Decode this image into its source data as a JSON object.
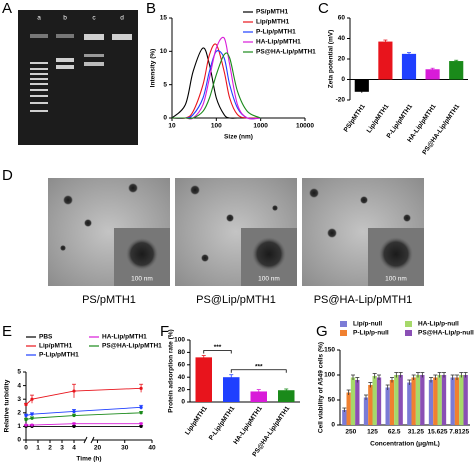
{
  "panels": [
    "A",
    "B",
    "C",
    "D",
    "E",
    "F",
    "G"
  ],
  "gel": {
    "lanes": [
      "a",
      "b",
      "c",
      "d"
    ]
  },
  "tem": {
    "captions": [
      "PS/pMTH1",
      "PS@Lip/pMTH1",
      "PS@HA-Lip/pMTH1"
    ],
    "scale_bar": "100 nm"
  },
  "chart_data": [
    {
      "type": "line",
      "xlabel": "Size (nm)",
      "ylabel": "Intensity (%)",
      "xscale": "log",
      "x": [
        10,
        20,
        30,
        50,
        70,
        100,
        150,
        200,
        300,
        500,
        1000
      ],
      "xlim": [
        10,
        10000
      ],
      "xticks": [
        10,
        100,
        1000,
        10000
      ],
      "ylim": [
        0,
        15
      ],
      "yticks": [
        0,
        5,
        10,
        15
      ],
      "legend": "upper right",
      "series": [
        {
          "name": "PS/pMTH1",
          "color": "#000000",
          "values": [
            0,
            2,
            7,
            10.5,
            8,
            3,
            0.5,
            0,
            0,
            0,
            0
          ]
        },
        {
          "name": "Lip/pMTH1",
          "color": "#e8141c",
          "values": [
            0,
            0,
            1,
            5,
            9.5,
            11,
            7,
            3,
            0.5,
            0,
            0
          ]
        },
        {
          "name": "P-Lip/pMTH1",
          "color": "#1f3fff",
          "values": [
            0,
            0,
            0.5,
            3,
            7,
            10,
            9,
            5,
            1.5,
            0,
            0
          ]
        },
        {
          "name": "HA-Lip/pMTH1",
          "color": "#d81bd8",
          "values": [
            0,
            0,
            0,
            2,
            6,
            10.5,
            12,
            8,
            2,
            0,
            0
          ]
        },
        {
          "name": "PS@HA-Lip/pMTH1",
          "color": "#1a8a1a",
          "values": [
            0,
            0,
            0,
            1,
            3,
            6.5,
            9.5,
            9,
            4,
            1,
            0
          ]
        }
      ]
    },
    {
      "type": "bar",
      "ylabel": "Zeta potential (mV)",
      "categories": [
        "PS/pMTH1",
        "Lip/pMTH1",
        "P-Lip/pMTH1",
        "HA-Lip/pMTH1",
        "PS@HA-Lip/pMTH1"
      ],
      "values": [
        -12,
        37,
        25,
        10,
        18
      ],
      "errors": [
        1,
        1.5,
        1.2,
        1,
        0.8
      ],
      "colors": [
        "#000000",
        "#e8141c",
        "#1f3fff",
        "#d81bd8",
        "#1a8a1a"
      ],
      "ylim": [
        -20,
        60
      ],
      "yticks": [
        -20,
        0,
        20,
        40,
        60
      ]
    },
    {
      "type": "line",
      "xlabel": "Time (h)",
      "ylabel": "Relative turbidity",
      "markers": true,
      "x": [
        0,
        0.5,
        4,
        36
      ],
      "xlim": [
        0,
        40
      ],
      "xbreak": [
        5,
        18
      ],
      "xticks": [
        0,
        1,
        2,
        3,
        4,
        20,
        30,
        40
      ],
      "ylim": [
        0,
        5
      ],
      "yticks": [
        0,
        1,
        2,
        3,
        4,
        5
      ],
      "legend": "top",
      "series": [
        {
          "name": "PBS",
          "color": "#000000",
          "values": [
            1,
            1,
            1,
            1
          ],
          "errors": [
            0.05,
            0.05,
            0.05,
            0.05
          ]
        },
        {
          "name": "Lip/pMTH1",
          "color": "#e8141c",
          "values": [
            2.6,
            3,
            3.6,
            3.8
          ],
          "errors": [
            0.1,
            0.3,
            0.5,
            0.3
          ]
        },
        {
          "name": "P-Lip/pMTH1",
          "color": "#1f3fff",
          "values": [
            1.8,
            1.9,
            2.1,
            2.4
          ],
          "errors": [
            0.1,
            0.1,
            0.15,
            0.15
          ]
        },
        {
          "name": "HA-Lip/pMTH1",
          "color": "#d81bd8",
          "values": [
            1.1,
            1.1,
            1.2,
            1.2
          ],
          "errors": [
            0.05,
            0.05,
            0.05,
            0.05
          ]
        },
        {
          "name": "PS@HA-Lip/pMTH1",
          "color": "#1a8a1a",
          "values": [
            1.5,
            1.6,
            1.8,
            2
          ],
          "errors": [
            0.1,
            0.1,
            0.1,
            0.1
          ]
        }
      ]
    },
    {
      "type": "bar",
      "ylabel": "Protein adsorption rate (%)",
      "categories": [
        "Lip/pMTH1",
        "P-Lip/pMTH1",
        "HA-Lip/pMTH1",
        "PS@HA-Lip/pMTH1"
      ],
      "values": [
        72,
        40,
        17,
        19
      ],
      "errors": [
        3,
        4,
        3,
        2
      ],
      "colors": [
        "#e8141c",
        "#1f3fff",
        "#d81bd8",
        "#1a8a1a"
      ],
      "ylim": [
        0,
        100
      ],
      "yticks": [
        0,
        20,
        40,
        60,
        80,
        100
      ],
      "significance": [
        {
          "label": "***",
          "pair": [
            "Lip/pMTH1",
            "P-Lip/pMTH1"
          ]
        },
        {
          "label": "***",
          "pair": [
            "P-Lip/pMTH1",
            "PS@HA-Lip/pMTH1"
          ]
        }
      ]
    },
    {
      "type": "grouped_bar",
      "xlabel": "Concentration (μg/mL)",
      "ylabel": "Cell viability of A549 cells (%)",
      "categories": [
        "250",
        "125",
        "62.5",
        "31.25",
        "15.625",
        "7.8125"
      ],
      "ylim": [
        0,
        150
      ],
      "yticks": [
        0,
        50,
        100,
        150
      ],
      "legend": "top",
      "series": [
        {
          "name": "Lip/p-null",
          "color": "#7b7bd6",
          "values": [
            30,
            55,
            75,
            85,
            90,
            95
          ],
          "errors": [
            4,
            5,
            5,
            5,
            5,
            5
          ]
        },
        {
          "name": "P-Lip/p-null",
          "color": "#f08030",
          "values": [
            65,
            80,
            90,
            95,
            95,
            95
          ],
          "errors": [
            5,
            5,
            5,
            5,
            5,
            5
          ]
        },
        {
          "name": "HA-Lip/p-null",
          "color": "#a6d96a",
          "values": [
            95,
            98,
            100,
            100,
            100,
            100
          ],
          "errors": [
            5,
            5,
            5,
            5,
            5,
            5
          ]
        },
        {
          "name": "PS@HA-Lip/p-null",
          "color": "#8a4fb5",
          "values": [
            90,
            95,
            100,
            100,
            100,
            100
          ],
          "errors": [
            5,
            5,
            5,
            5,
            5,
            5
          ]
        }
      ]
    }
  ]
}
